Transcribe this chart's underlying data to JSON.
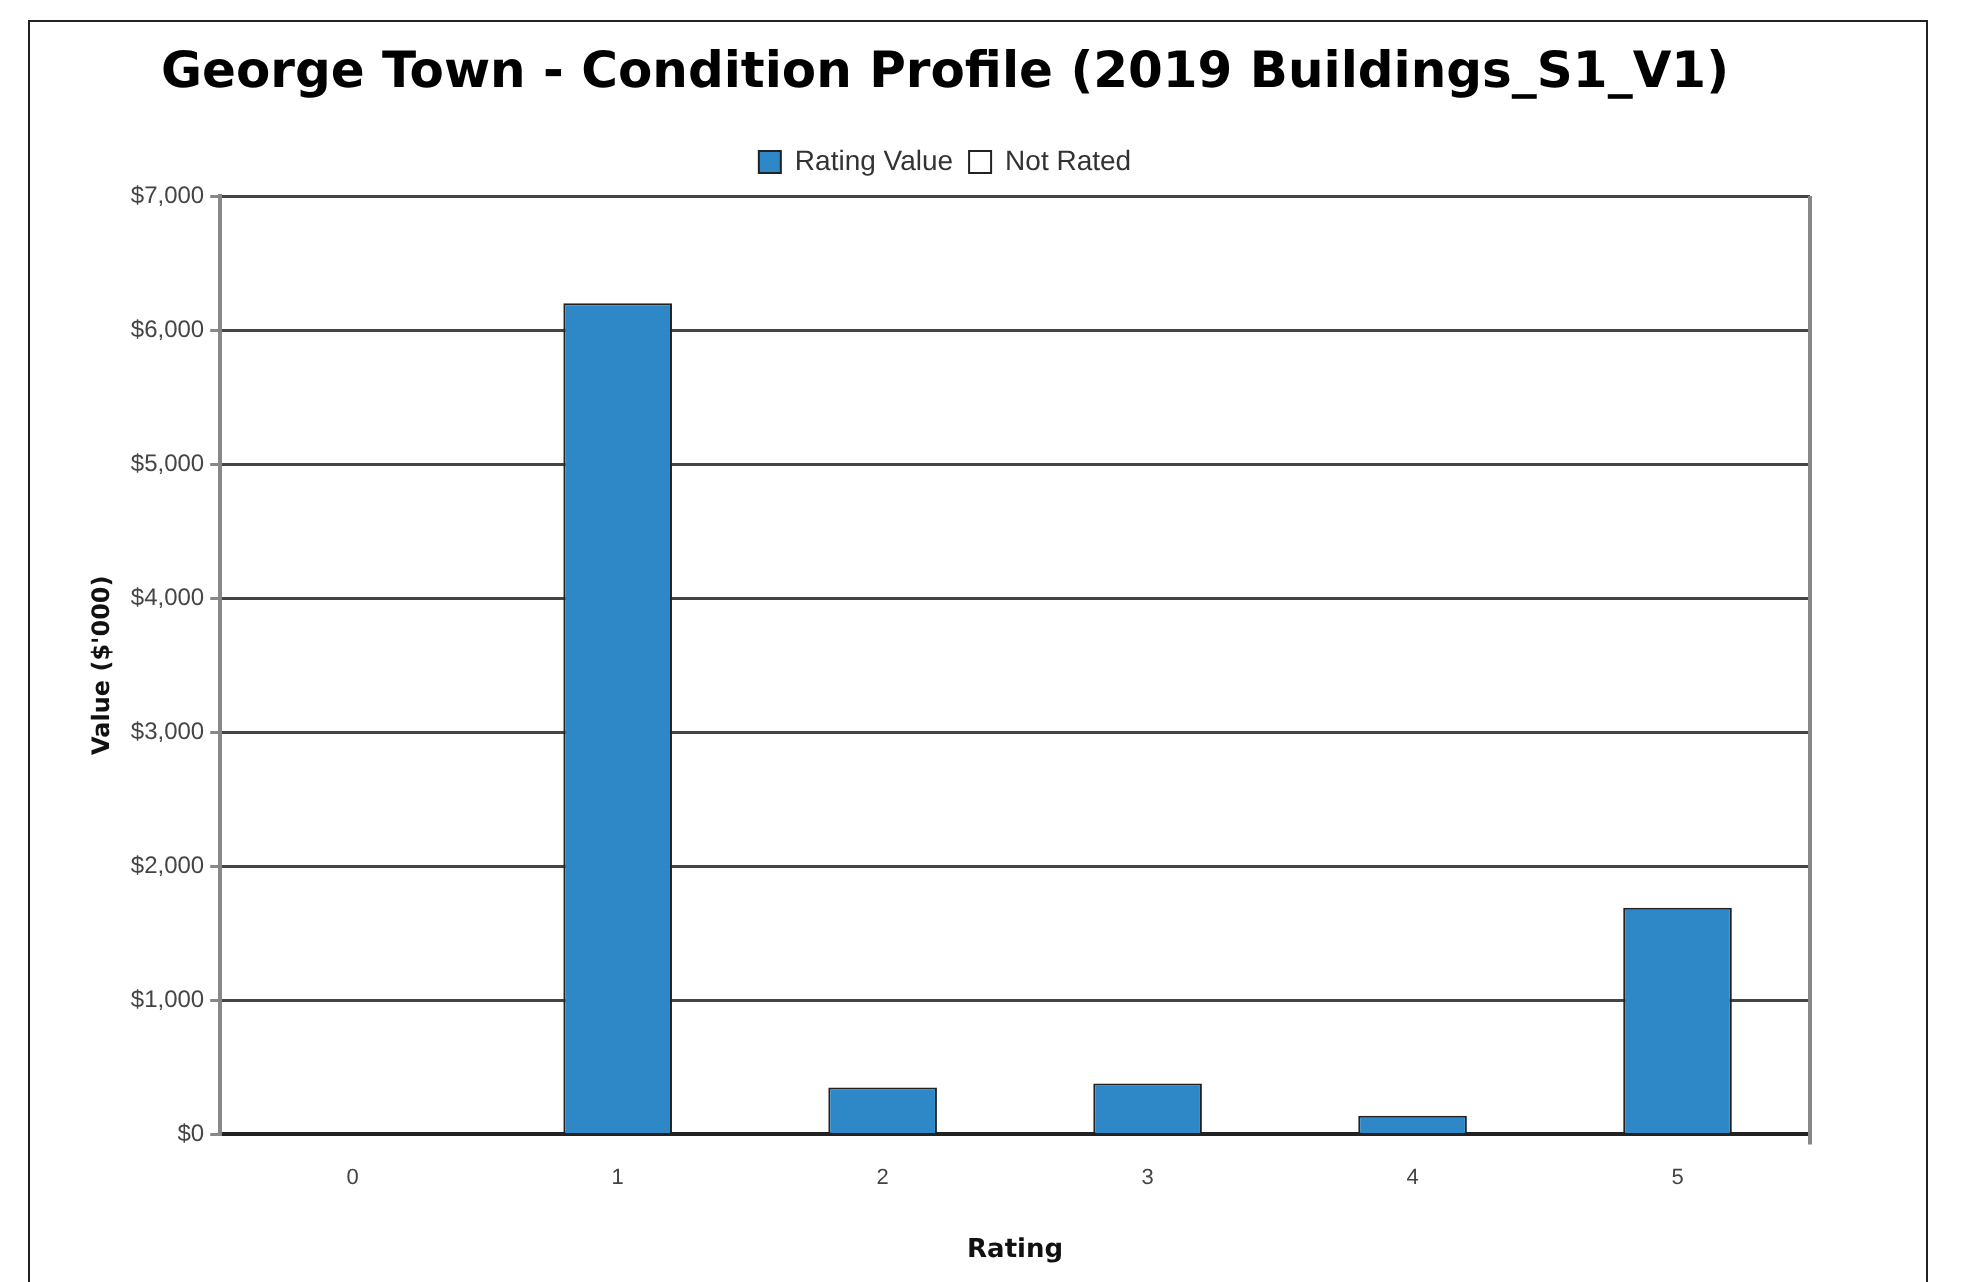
{
  "chart_data": {
    "type": "bar",
    "title": "George Town - Condition Profile (2019 Buildings_S1_V1)",
    "xlabel": "Rating",
    "ylabel": "Value ($'000)",
    "categories": [
      "0",
      "1",
      "2",
      "3",
      "4",
      "5"
    ],
    "series": [
      {
        "name": "Rating Value",
        "color": "#2e88c8",
        "values": [
          0,
          6200,
          350,
          380,
          140,
          1690
        ]
      },
      {
        "name": "Not Rated",
        "color": "#ffffff",
        "values": [
          null,
          null,
          null,
          null,
          null,
          null
        ]
      }
    ],
    "ylim": [
      0,
      7000
    ],
    "yticks": [
      {
        "value": 0,
        "label": "$0"
      },
      {
        "value": 1000,
        "label": "$1,000"
      },
      {
        "value": 2000,
        "label": "$2,000"
      },
      {
        "value": 3000,
        "label": "$3,000"
      },
      {
        "value": 4000,
        "label": "$4,000"
      },
      {
        "value": 5000,
        "label": "$5,000"
      },
      {
        "value": 6000,
        "label": "$6,000"
      },
      {
        "value": 7000,
        "label": "$7,000"
      }
    ],
    "grid": "y",
    "legend": "top"
  }
}
